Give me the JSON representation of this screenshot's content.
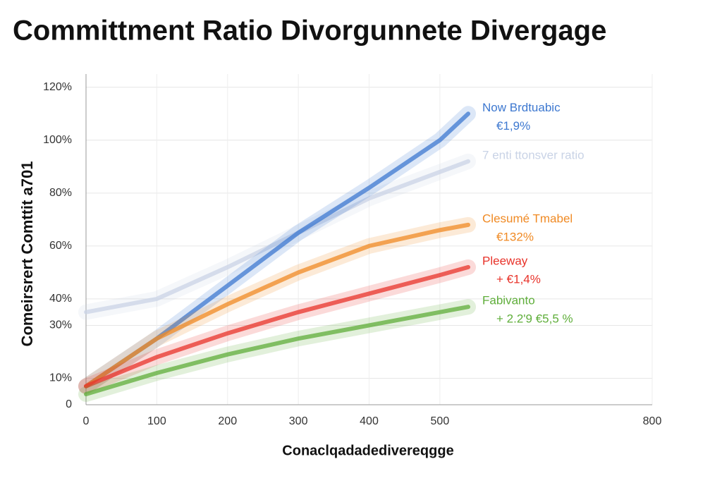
{
  "chart_data": {
    "type": "line",
    "title": "Committment Ratio Divorgunnete Divergage",
    "ylabel": "Comeirsrert Comttit a701",
    "xlabel": "Conaclqadadedivereqgge",
    "xlim": [
      0,
      800
    ],
    "ylim": [
      0,
      125
    ],
    "xticks": [
      0,
      100,
      200,
      300,
      400,
      500,
      800
    ],
    "yticks": [
      0,
      {
        "value": 10,
        "label": "10%"
      },
      {
        "value": 40,
        "label": "40%"
      },
      {
        "value": 30,
        "label": "30%"
      },
      {
        "value": 60,
        "label": "60%"
      },
      {
        "value": 80,
        "label": "80%"
      },
      {
        "value": 100,
        "label": "100%"
      },
      {
        "value": 120,
        "label": "120%"
      }
    ],
    "grid": true,
    "x": [
      0,
      100,
      200,
      300,
      400,
      500,
      540
    ],
    "series": [
      {
        "name": "7 enti ttonsver ratio",
        "color": "#c9d3e6",
        "values": [
          35,
          40,
          52,
          65,
          78,
          88,
          92
        ]
      },
      {
        "name": "Now Brdtuabic",
        "note": "€1,9%",
        "color": "#3d78d0",
        "values": [
          7,
          25,
          45,
          65,
          82,
          100,
          110
        ]
      },
      {
        "name": "Clesumé Tmabel",
        "note": "€132%",
        "color": "#f08a24",
        "values": [
          7,
          25,
          38,
          50,
          60,
          66,
          68
        ]
      },
      {
        "name": "Pleeway",
        "note": "+ €1,4%",
        "color": "#e8332a",
        "values": [
          7,
          18,
          27,
          35,
          42,
          49,
          52
        ]
      },
      {
        "name": "Fabivanto",
        "note": "+ 2.2'9 €5,5 %",
        "color": "#5fae3a",
        "values": [
          4,
          12,
          19,
          25,
          30,
          35,
          37
        ]
      }
    ]
  }
}
